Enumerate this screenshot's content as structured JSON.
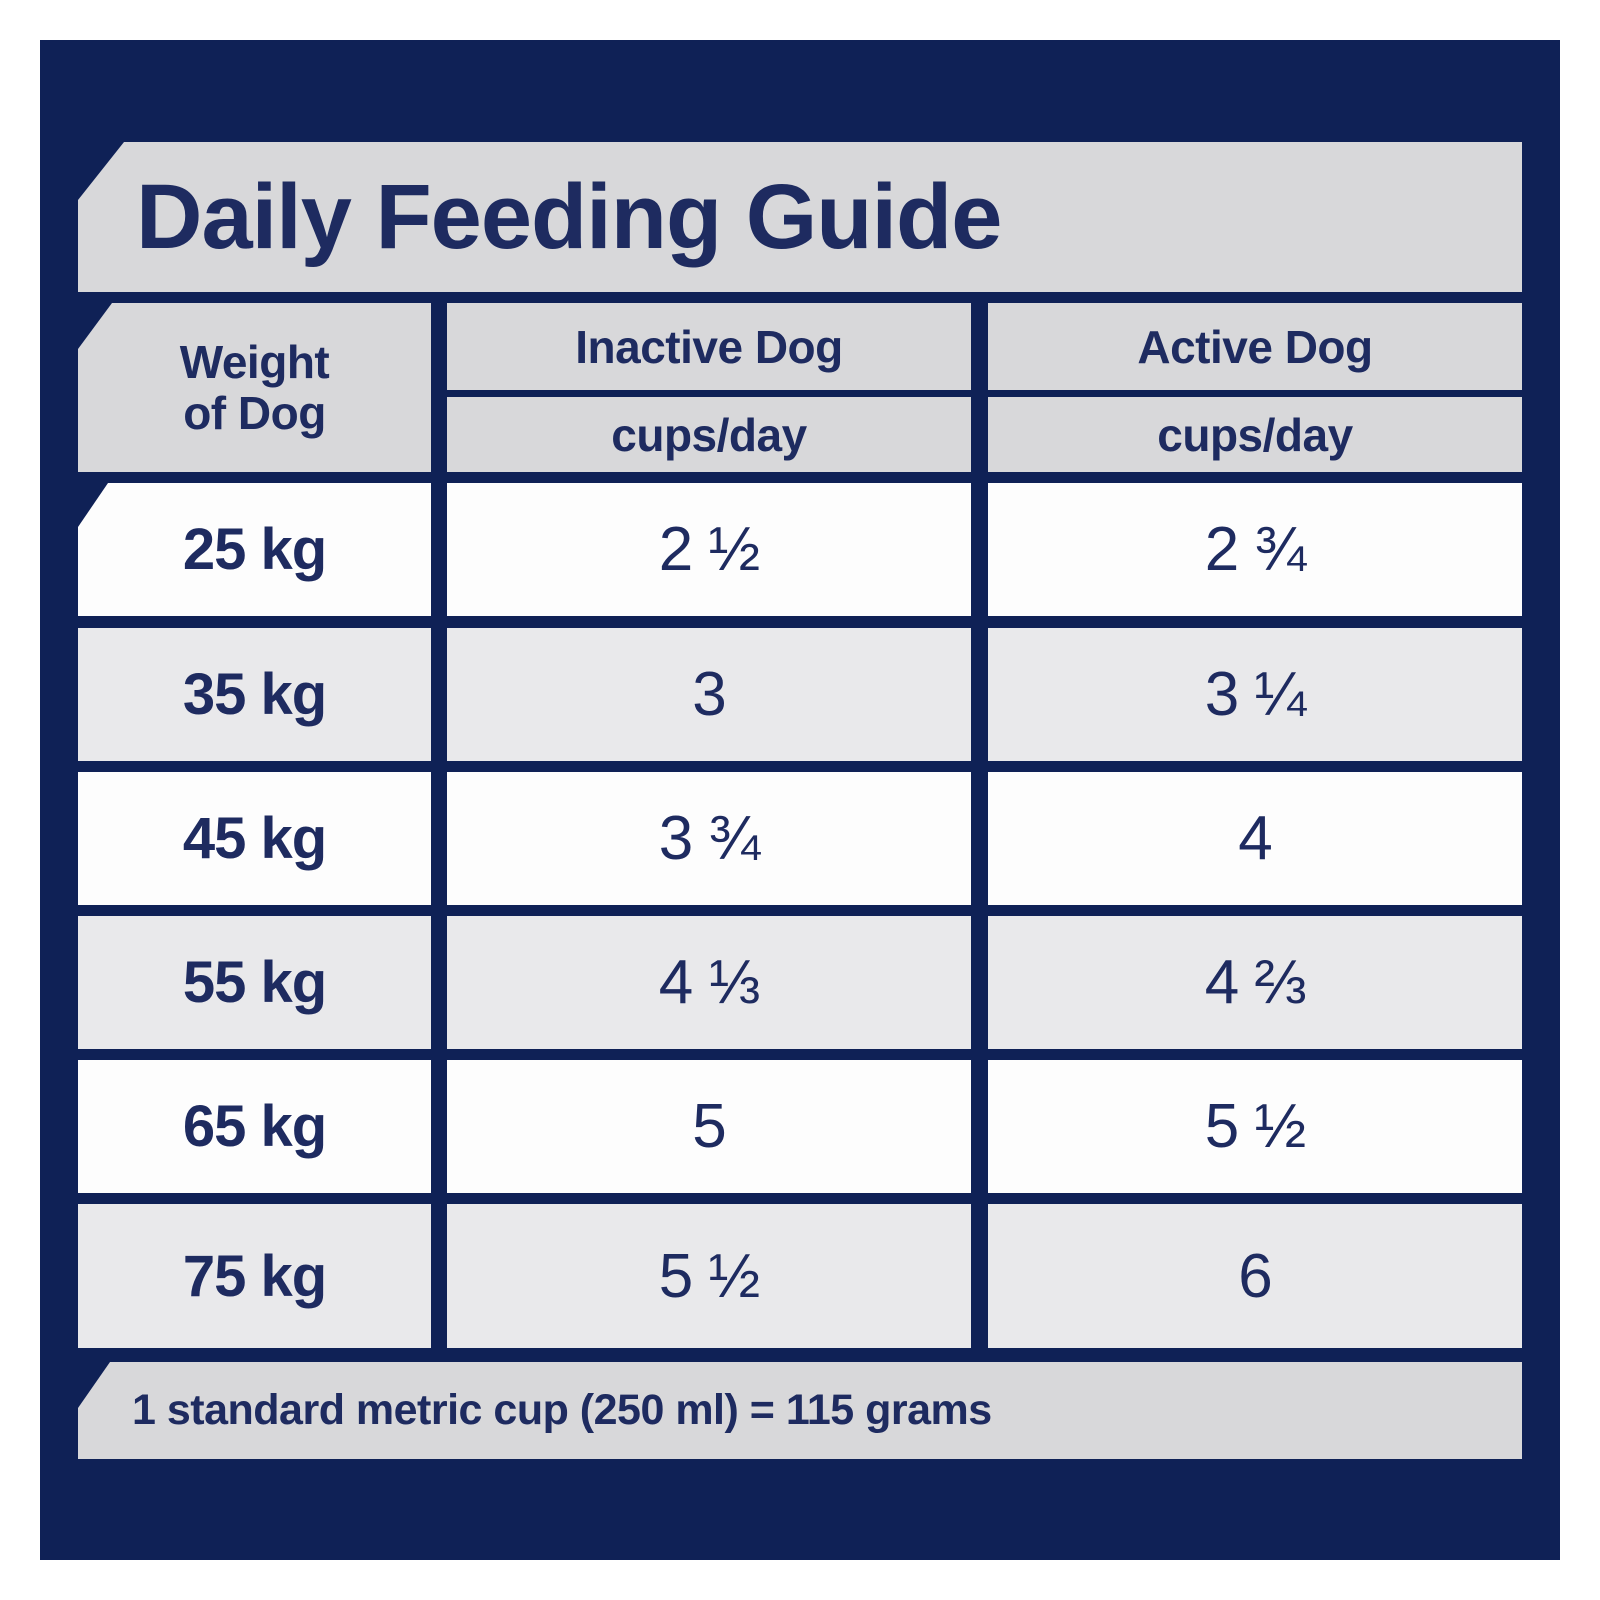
{
  "title": "Daily Feeding Guide",
  "colors": {
    "brand_navy": "#0f2156",
    "text_navy": "#1e2b60",
    "banner_gray": "#d8d8da",
    "row_white": "#fdfdfd",
    "row_gray": "#e9e9eb"
  },
  "table": {
    "weight_header": {
      "line1": "Weight",
      "line2": "of Dog"
    },
    "columns": [
      {
        "label": "Inactive Dog",
        "unit": "cups/day"
      },
      {
        "label": "Active Dog",
        "unit": "cups/day"
      }
    ],
    "rows": [
      {
        "weight": "25 kg",
        "inactive": "2 ½",
        "active": "2 ¾"
      },
      {
        "weight": "35 kg",
        "inactive": "3",
        "active": "3 ¼"
      },
      {
        "weight": "45 kg",
        "inactive": "3 ¾",
        "active": "4"
      },
      {
        "weight": "55 kg",
        "inactive": "4 ⅓",
        "active": "4 ⅔"
      },
      {
        "weight": "65 kg",
        "inactive": "5",
        "active": "5 ½"
      },
      {
        "weight": "75 kg",
        "inactive": "5 ½",
        "active": "6"
      }
    ]
  },
  "footer": {
    "note": "1 standard metric cup (250 ml) = 115 grams"
  }
}
